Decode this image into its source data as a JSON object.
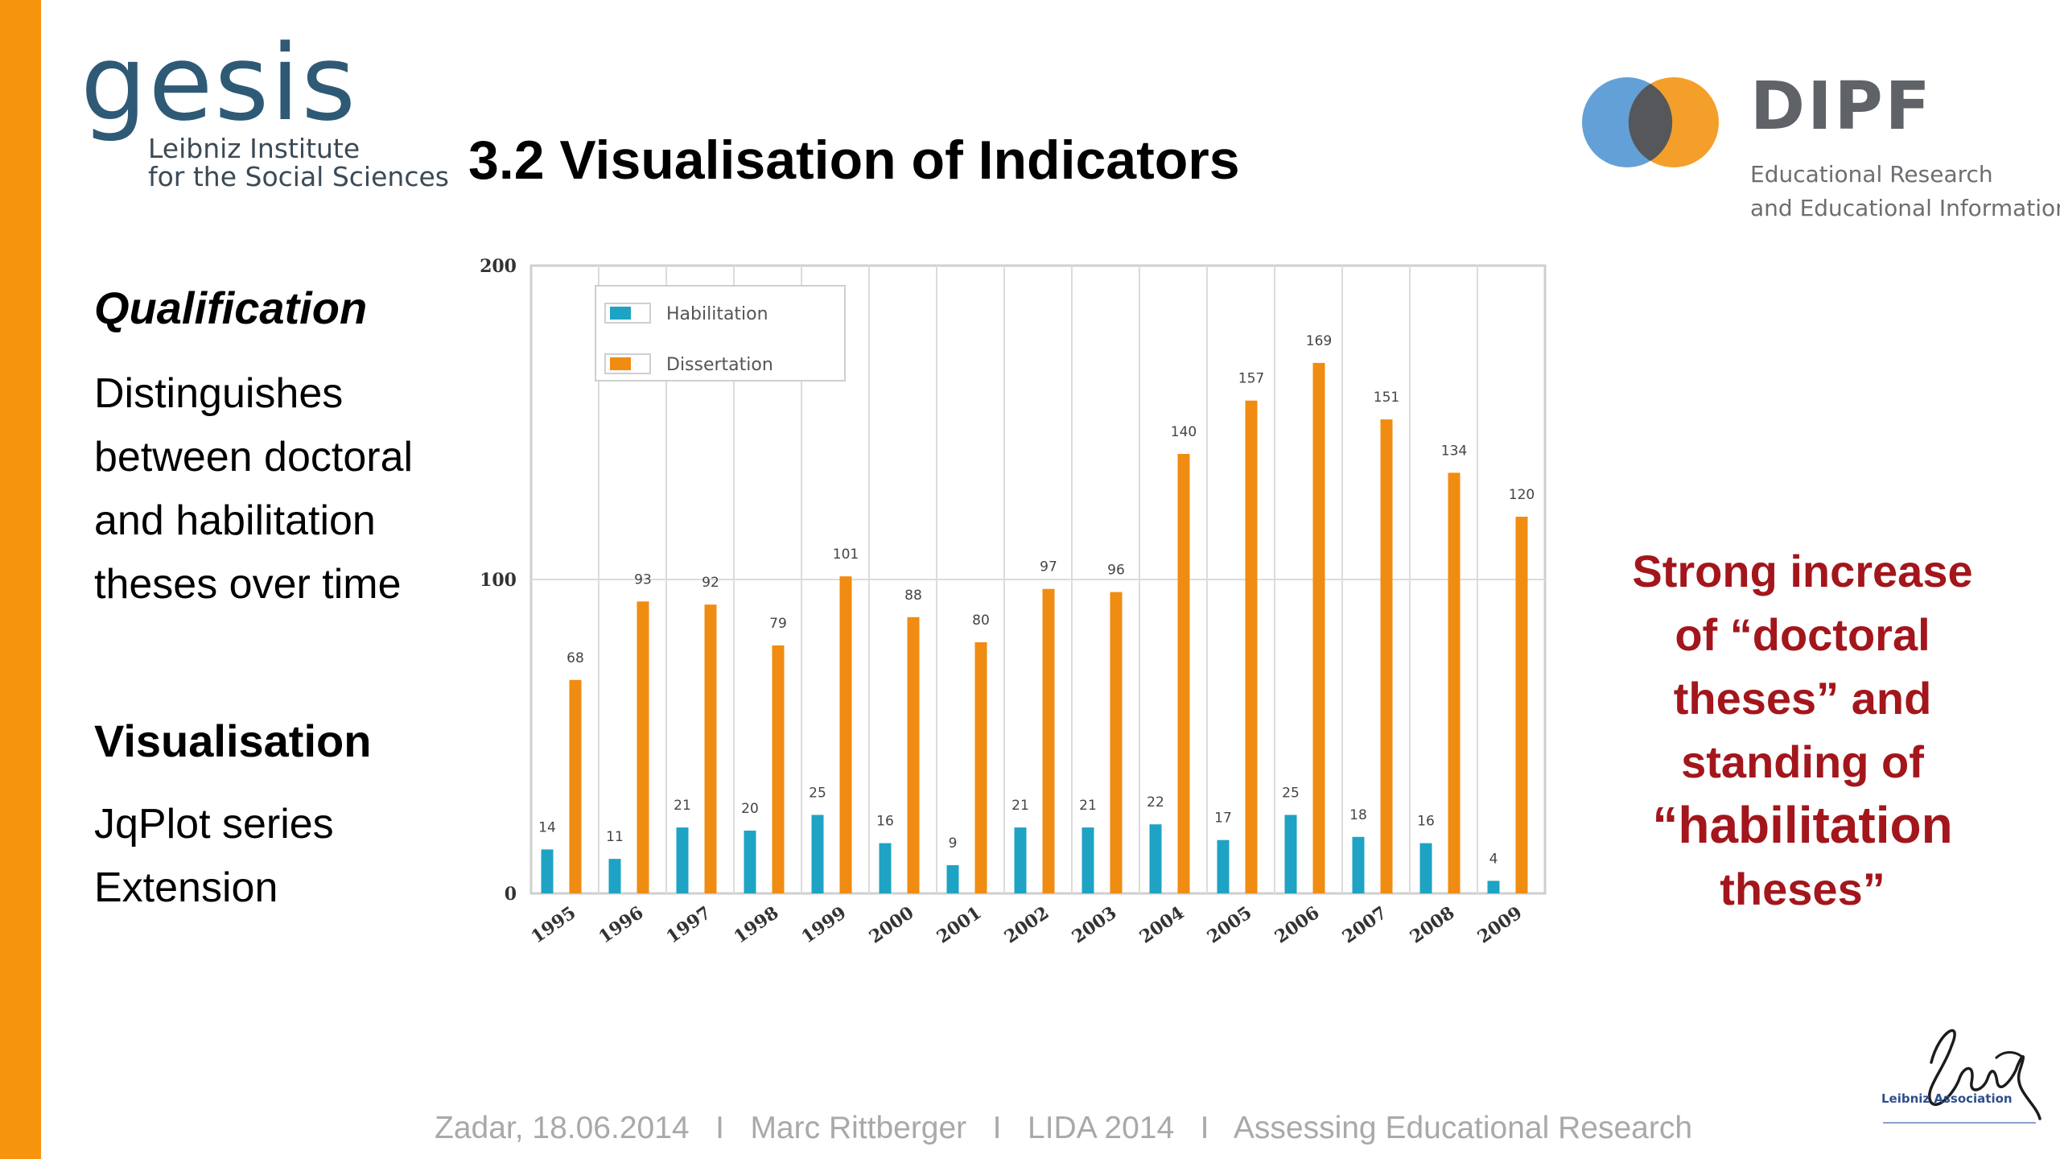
{
  "title": "3.2 Visualisation of Indicators",
  "gesis": {
    "word": "gesis",
    "subtitle_line1": "Leibniz Institute",
    "subtitle_line2": "for the Social Sciences"
  },
  "dipf": {
    "word": "DIPF",
    "subtitle_line1": "Educational Research",
    "subtitle_line2": "and Educational Information"
  },
  "left": {
    "qualification_heading": "Qualification",
    "qualification_body": "Distinguishes between doctoral and habilitation theses over time",
    "visualisation_heading": "Visualisation",
    "visualisation_body": "JqPlot series Extension"
  },
  "annotation": {
    "line1": "Strong increase",
    "line2": "of “doctoral",
    "line3": "theses” and",
    "line4": "standing of",
    "line5": "“habilitation",
    "line6": "theses”"
  },
  "footer": "Zadar, 18.06.2014   I   Marc Rittberger   I   LIDA 2014   I   Assessing Educational Research",
  "leibniz": {
    "label": "Leibniz Association"
  },
  "colors": {
    "accent_bar": "#f7940d",
    "habilitation": "#1ea3c4",
    "dissertation": "#f08c12",
    "annotation": "#a3161c"
  },
  "chart_data": {
    "type": "bar",
    "categories": [
      "1995",
      "1996",
      "1997",
      "1998",
      "1999",
      "2000",
      "2001",
      "2002",
      "2003",
      "2004",
      "2005",
      "2006",
      "2007",
      "2008",
      "2009"
    ],
    "series": [
      {
        "name": "Habilitation",
        "values": [
          14,
          11,
          21,
          20,
          25,
          16,
          9,
          21,
          21,
          22,
          17,
          25,
          18,
          16,
          4
        ]
      },
      {
        "name": "Dissertation",
        "values": [
          68,
          93,
          92,
          79,
          101,
          88,
          80,
          97,
          96,
          140,
          157,
          169,
          151,
          134,
          120
        ]
      }
    ],
    "y_ticks": [
      "0",
      "100",
      "200"
    ],
    "ylim": [
      0,
      200
    ],
    "grid": true,
    "legend": "top-left"
  }
}
